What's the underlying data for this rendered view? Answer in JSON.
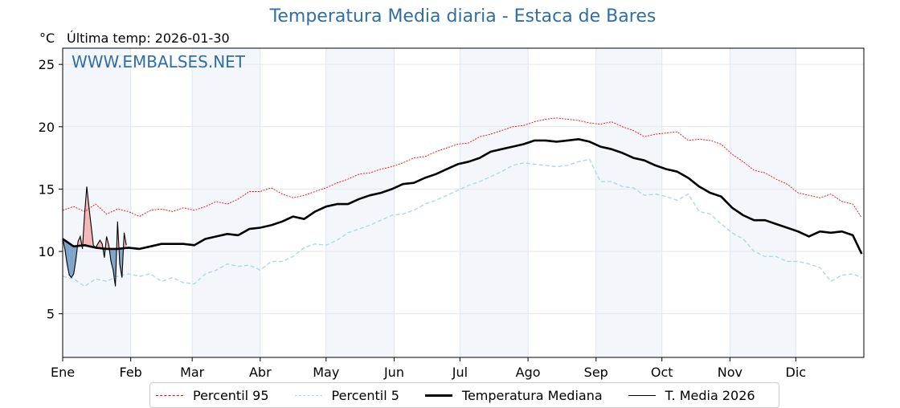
{
  "title": "Temperatura Media diaria - Estaca de Bares",
  "unit_label": "°C",
  "last_temp_label": "Última temp: 2026-01-30",
  "watermark": "WWW.EMBALSES.NET",
  "colors": {
    "title": "#2f6ea6",
    "p95": "#ff0000",
    "p5": "#add8e6",
    "median": "#000000",
    "current": "#000000",
    "above_fill": "#f4b6b6",
    "below_fill": "#7ba3c8",
    "band": "#f3f7fc"
  },
  "legend": [
    {
      "key": "p95",
      "label": "Percentil 95"
    },
    {
      "key": "p5",
      "label": "Percentil 5"
    },
    {
      "key": "median",
      "label": "Temperatura Mediana"
    },
    {
      "key": "current",
      "label": "T. Media 2026"
    }
  ],
  "chart_data": {
    "type": "line",
    "title": "Temperatura Media diaria - Estaca de Bares",
    "xlabel": "",
    "ylabel": "°C",
    "ylim": [
      1.5,
      26.3
    ],
    "xlim_days": [
      0,
      364
    ],
    "yticks": [
      5,
      10,
      15,
      20,
      25
    ],
    "grid": true,
    "legend_position": "bottom-center",
    "months": [
      {
        "label": "Ene",
        "day": 0
      },
      {
        "label": "Feb",
        "day": 31
      },
      {
        "label": "Mar",
        "day": 59
      },
      {
        "label": "Abr",
        "day": 90
      },
      {
        "label": "May",
        "day": 120
      },
      {
        "label": "Jun",
        "day": 151
      },
      {
        "label": "Jul",
        "day": 181
      },
      {
        "label": "Ago",
        "day": 212
      },
      {
        "label": "Sep",
        "day": 243
      },
      {
        "label": "Oct",
        "day": 273
      },
      {
        "label": "Nov",
        "day": 304
      },
      {
        "label": "Dic",
        "day": 334
      }
    ],
    "shaded_months": [
      "Ene",
      "Mar",
      "May",
      "Jul",
      "Sep",
      "Nov"
    ],
    "step_days": 5,
    "series": [
      {
        "name": "Percentil 95",
        "key": "p95",
        "values": [
          13.3,
          13.6,
          13.2,
          13.8,
          13.0,
          13.4,
          13.2,
          12.8,
          13.3,
          13.4,
          13.2,
          13.5,
          13.3,
          13.6,
          14.0,
          13.8,
          14.2,
          14.8,
          14.8,
          15.1,
          14.6,
          14.3,
          14.5,
          14.8,
          15.1,
          15.5,
          15.8,
          16.2,
          16.3,
          16.6,
          16.8,
          17.1,
          17.5,
          17.6,
          18.0,
          18.3,
          18.6,
          18.7,
          19.2,
          19.4,
          19.7,
          20.0,
          20.1,
          20.4,
          20.6,
          20.7,
          20.6,
          20.5,
          20.3,
          20.2,
          20.4,
          20.0,
          19.7,
          19.2,
          19.4,
          19.5,
          19.6,
          18.9,
          19.0,
          18.9,
          18.6,
          17.8,
          17.2,
          16.5,
          16.3,
          15.8,
          15.4,
          14.7,
          14.5,
          14.3,
          14.6,
          14.0,
          13.8,
          12.7
        ]
      },
      {
        "name": "Percentil 5",
        "key": "p5",
        "values": [
          8.0,
          7.8,
          7.2,
          7.8,
          7.6,
          8.0,
          8.2,
          8.0,
          8.2,
          7.6,
          7.9,
          7.5,
          7.4,
          8.2,
          8.5,
          9.0,
          8.8,
          8.9,
          8.5,
          9.2,
          9.2,
          9.6,
          10.3,
          10.6,
          10.5,
          10.9,
          11.5,
          11.8,
          12.1,
          12.5,
          12.9,
          13.0,
          13.3,
          13.8,
          14.1,
          14.5,
          14.9,
          15.3,
          15.6,
          16.0,
          16.4,
          16.9,
          17.1,
          17.0,
          16.9,
          16.8,
          16.9,
          17.2,
          17.4,
          15.6,
          15.6,
          15.2,
          15.1,
          14.5,
          14.6,
          14.4,
          14.1,
          14.6,
          13.2,
          13.0,
          12.2,
          11.5,
          11.0,
          10.0,
          9.6,
          9.6,
          9.2,
          9.2,
          9.0,
          8.7,
          7.6,
          8.1,
          8.2,
          7.9
        ]
      },
      {
        "name": "Temperatura Mediana",
        "key": "median",
        "values": [
          11.0,
          10.4,
          10.5,
          10.3,
          10.2,
          10.2,
          10.3,
          10.2,
          10.4,
          10.6,
          10.6,
          10.6,
          10.5,
          11.0,
          11.2,
          11.4,
          11.3,
          11.8,
          11.9,
          12.1,
          12.4,
          12.8,
          12.6,
          13.2,
          13.6,
          13.8,
          13.8,
          14.2,
          14.5,
          14.7,
          15.0,
          15.4,
          15.5,
          15.9,
          16.2,
          16.6,
          17.0,
          17.2,
          17.5,
          18.0,
          18.2,
          18.4,
          18.6,
          18.9,
          18.9,
          18.8,
          18.9,
          19.0,
          18.8,
          18.4,
          18.2,
          17.9,
          17.5,
          17.3,
          16.9,
          16.6,
          16.4,
          15.9,
          15.2,
          14.7,
          14.4,
          13.5,
          12.9,
          12.5,
          12.5,
          12.2,
          11.9,
          11.6,
          11.2,
          11.6,
          11.5,
          11.6,
          11.3,
          9.8
        ]
      },
      {
        "name": "T. Media 2026",
        "key": "current",
        "step_days": 1,
        "values": [
          11.0,
          10.2,
          9.0,
          8.1,
          7.9,
          8.2,
          9.3,
          10.8,
          11.2,
          10.2,
          13.0,
          15.2,
          13.5,
          12.0,
          10.5,
          10.3,
          10.6,
          10.9,
          10.6,
          9.5,
          11.2,
          10.5,
          9.2,
          8.5,
          7.2,
          12.4,
          9.0,
          7.9,
          11.5,
          10.5
        ]
      }
    ]
  }
}
